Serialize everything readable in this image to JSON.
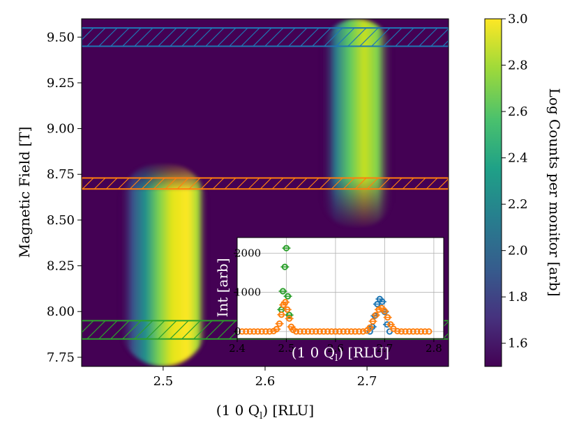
{
  "chart_data": [
    {
      "type": "heatmap",
      "title": "",
      "xlabel": "(1 0 Q",
      "xlabel_sub": "l",
      "xlabel_tail": ") [RLU]",
      "ylabel": "Magnetic Field [T]",
      "xlim": [
        2.42,
        2.78
      ],
      "ylim": [
        7.7,
        9.6
      ],
      "x_ticks": [
        2.5,
        2.6,
        2.7
      ],
      "x_tick_labels": [
        "2.5",
        "2.6",
        "2.7"
      ],
      "y_ticks": [
        7.75,
        8.0,
        8.25,
        8.5,
        8.75,
        9.0,
        9.25,
        9.5
      ],
      "y_tick_labels": [
        "7.75",
        "8.00",
        "8.25",
        "8.50",
        "8.75",
        "9.00",
        "9.25",
        "9.50"
      ],
      "colormap": "viridis",
      "colorbar": {
        "label": "Log Counts per monitor [arb]",
        "range": [
          1.5,
          3.0
        ],
        "ticks": [
          1.6,
          1.8,
          2.0,
          2.2,
          2.4,
          2.6,
          2.8,
          3.0
        ],
        "tick_labels": [
          "1.6",
          "1.8",
          "2.0",
          "2.2",
          "2.4",
          "2.6",
          "2.8",
          "3.0"
        ]
      },
      "features": [
        {
          "x_center": 2.5,
          "x_half_width": 0.027,
          "field_min": 7.7,
          "field_max": 8.82,
          "peak": 3.0
        },
        {
          "x_center": 2.69,
          "x_half_width": 0.022,
          "field_min": 8.45,
          "field_max": 9.6,
          "peak": 2.85
        }
      ],
      "hatched_bands": [
        {
          "field_range": [
            9.45,
            9.55
          ],
          "color": "#1f77b4"
        },
        {
          "field_range": [
            8.67,
            8.73
          ],
          "color": "#ff7f0e"
        },
        {
          "field_range": [
            7.85,
            7.95
          ],
          "color": "#2ca02c"
        }
      ]
    },
    {
      "type": "scatter",
      "title": "",
      "xlabel": "(1 0 Q",
      "xlabel_sub": "l",
      "xlabel_tail": ") [RLU]",
      "ylabel": "Int [arb]",
      "xlim": [
        2.4,
        2.82
      ],
      "ylim": [
        -180,
        2400
      ],
      "x_ticks": [
        2.4,
        2.5,
        2.6,
        2.7,
        2.8
      ],
      "x_tick_labels": [
        "2.4",
        "2.5",
        "2.6",
        "2.7",
        "2.8"
      ],
      "y_ticks": [
        0,
        1000,
        2000
      ],
      "y_tick_labels": [
        "0",
        "1000",
        "2000"
      ],
      "grid": true,
      "series": [
        {
          "color": "#2ca02c",
          "x": [
            2.49,
            2.493,
            2.497,
            2.5,
            2.503,
            2.506
          ],
          "y": [
            560,
            1030,
            1650,
            2130,
            900,
            420
          ]
        },
        {
          "color": "#1f77b4",
          "x": [
            2.67,
            2.675,
            2.68,
            2.685,
            2.69,
            2.695,
            2.7,
            2.705,
            2.71
          ],
          "y": [
            0,
            120,
            400,
            700,
            830,
            760,
            500,
            180,
            0
          ]
        },
        {
          "color": "#ff7f0e",
          "x": [
            2.41,
            2.418,
            2.426,
            2.434,
            2.442,
            2.45,
            2.458,
            2.466,
            2.474,
            2.48,
            2.486,
            2.49,
            2.494,
            2.498,
            2.502,
            2.506,
            2.51,
            2.514,
            2.52,
            2.528,
            2.536,
            2.544,
            2.552,
            2.56,
            2.568,
            2.576,
            2.584,
            2.592,
            2.6,
            2.608,
            2.616,
            2.624,
            2.632,
            2.64,
            2.648,
            2.656,
            2.664,
            2.67,
            2.676,
            2.682,
            2.688,
            2.694,
            2.7,
            2.706,
            2.712,
            2.718,
            2.726,
            2.734,
            2.742,
            2.75,
            2.758,
            2.766,
            2.774,
            2.782,
            2.79
          ],
          "y": [
            0,
            0,
            0,
            0,
            0,
            0,
            0,
            0,
            10,
            60,
            200,
            430,
            680,
            750,
            560,
            330,
            120,
            40,
            0,
            0,
            0,
            0,
            0,
            0,
            0,
            0,
            0,
            0,
            0,
            0,
            0,
            0,
            0,
            0,
            0,
            0,
            20,
            100,
            260,
            420,
            560,
            600,
            520,
            360,
            180,
            70,
            10,
            0,
            0,
            0,
            0,
            0,
            0,
            0,
            0
          ]
        }
      ]
    }
  ]
}
